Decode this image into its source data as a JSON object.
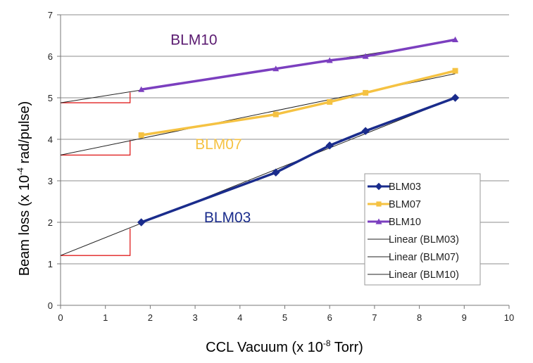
{
  "chart_data": {
    "type": "line",
    "title": "",
    "xlabel": "CCL Vacuum (x 10",
    "xlabel_exp": "-8",
    "xlabel_tail": " Torr)",
    "ylabel": "Beam loss (x 10",
    "ylabel_exp": "-4",
    "ylabel_tail": " rad/pulse)",
    "xlim": [
      0,
      10
    ],
    "ylim": [
      0,
      7
    ],
    "xticks": [
      "0",
      "1",
      "2",
      "3",
      "4",
      "5",
      "6",
      "7",
      "8",
      "9",
      "10"
    ],
    "yticks": [
      "0",
      "1",
      "2",
      "3",
      "4",
      "5",
      "6",
      "7"
    ],
    "grid": "horizontal",
    "series": [
      {
        "name": "BLM03",
        "color": "#1a2c8c",
        "marker": "diamond",
        "x": [
          1.8,
          4.8,
          6.0,
          6.8,
          8.8
        ],
        "y": [
          2.0,
          3.2,
          3.85,
          4.2,
          5.0
        ]
      },
      {
        "name": "BLM07",
        "color": "#f5c242",
        "marker": "square",
        "x": [
          1.8,
          4.8,
          6.0,
          6.8,
          8.8
        ],
        "y": [
          4.1,
          4.6,
          4.9,
          5.12,
          5.65
        ]
      },
      {
        "name": "BLM10",
        "color": "#7b3fbf",
        "marker": "triangle",
        "x": [
          1.8,
          4.8,
          6.0,
          6.8,
          8.8
        ],
        "y": [
          5.2,
          5.7,
          5.9,
          6.0,
          6.4
        ]
      }
    ],
    "trendlines": [
      {
        "name": "Linear (BLM03)",
        "color": "#222222",
        "x": [
          0,
          8.8
        ],
        "y": [
          1.2,
          5.0
        ]
      },
      {
        "name": "Linear (BLM07)",
        "color": "#222222",
        "x": [
          0,
          8.8
        ],
        "y": [
          3.62,
          5.58
        ]
      },
      {
        "name": "Linear (BLM10)",
        "color": "#222222",
        "x": [
          0,
          8.8
        ],
        "y": [
          4.88,
          6.38
        ]
      }
    ],
    "intercept_markers": {
      "color": "#e02020",
      "x_end": 1.55,
      "items": [
        {
          "y0": 1.2,
          "y1": 1.85
        },
        {
          "y0": 3.62,
          "y1": 3.98
        },
        {
          "y0": 4.88,
          "y1": 5.13
        }
      ]
    },
    "annotations": [
      {
        "text": "BLM10",
        "x": 2.45,
        "y": 6.28,
        "color": "#5a1a70"
      },
      {
        "text": "BLM07",
        "x": 3.0,
        "y": 3.76,
        "color": "#f5c242"
      },
      {
        "text": "BLM03",
        "x": 3.2,
        "y": 2.0,
        "color": "#1a2c8c"
      }
    ],
    "legend": {
      "position": "right",
      "entries": [
        "BLM03",
        "BLM07",
        "BLM10",
        "Linear (BLM03)",
        "Linear (BLM07)",
        "Linear (BLM10)"
      ]
    }
  }
}
